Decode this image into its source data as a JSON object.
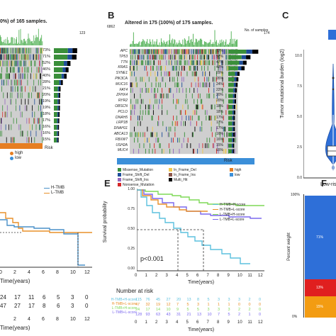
{
  "panelA": {
    "title": "0%) of 165 samples.",
    "side_count": "123",
    "percents": [
      "73%",
      "71%",
      "52%",
      "46%",
      "40%",
      "28%",
      "21%",
      "20%",
      "19%",
      "19%",
      "18%",
      "17%",
      "16%",
      "16%",
      "15%"
    ],
    "risk_label": "Risk",
    "legend": [
      "high",
      "low"
    ]
  },
  "panelB": {
    "label": "B",
    "title": "Altered in 175 (100%) of 175 samples.",
    "top_count": "6862",
    "side_count": "174",
    "side_title": "No. of samples",
    "genes": [
      "APC",
      "TP53",
      "TTN",
      "KRAS",
      "SYNE1",
      "PIK3CA",
      "MUC16",
      "FAT4",
      "ZFHX4",
      "RYR2",
      "OBSCN",
      "PCLO",
      "DNAH5",
      "LRP1B",
      "DNAH11",
      "ABCA13",
      "FBXW7",
      "USH2A",
      "MUC4"
    ],
    "percents": [
      "77%",
      "57%",
      "47%",
      "42%",
      "29%",
      "26%",
      "24%",
      "22%",
      "20%",
      "20%",
      "18%",
      "18%",
      "17%",
      "17%",
      "17%",
      "16%",
      "16%",
      "15%",
      "15%"
    ],
    "risk_label": "Risk",
    "mut_legend": [
      "Missense_Mutation",
      "Frame_Shift_Del",
      "Frame_Shift_Ins",
      "Nonsense_Mutation",
      "In_Frame_Del",
      "In_Frame_Ins",
      "Multi_Hit"
    ],
    "risk_legend": [
      "high",
      "low"
    ]
  },
  "panelC": {
    "label": "C",
    "ylabel": "Tumor mutational burden (log2)",
    "yticks": [
      "10.0",
      "7.5",
      "5.0",
      "2.5",
      "0.0"
    ],
    "xtick": "Low-ris"
  },
  "panelD": {
    "legend": [
      "H-TMB",
      "L-TMB"
    ],
    "xticks": [
      "0",
      "2",
      "4",
      "6",
      "8",
      "10",
      "12"
    ],
    "xlabel": "Time(years)",
    "risk_rows": [
      [
        "24",
        "17",
        "11",
        "6",
        "5",
        "3",
        "0"
      ],
      [
        "47",
        "27",
        "17",
        "8",
        "6",
        "3",
        "0"
      ]
    ],
    "xticks2": [
      "2",
      "4",
      "6",
      "8",
      "10",
      "12"
    ],
    "xlabel2": "Time(years)"
  },
  "panelE": {
    "label": "E",
    "ylabel": "Survival probability",
    "yticks": [
      "1.00",
      "0.75",
      "0.50",
      "0.25",
      "0.00"
    ],
    "xticks": [
      "0",
      "1",
      "2",
      "3",
      "4",
      "5",
      "6",
      "7",
      "8",
      "9",
      "10",
      "11",
      "12"
    ],
    "xlabel": "Time(years)",
    "pvalue": "p<0.001",
    "legend": [
      "H-TMB+H-score",
      "H-TMB+L-score",
      "L-TMB+H-score",
      "L-TMB+L-score"
    ],
    "risk_title": "Number at risk",
    "risk_rows": [
      [
        "115",
        "76",
        "45",
        "27",
        "20",
        "13",
        "8",
        "5",
        "3",
        "3",
        "3",
        "2",
        "0"
      ],
      [
        "47",
        "32",
        "19",
        "12",
        "7",
        "5",
        "3",
        "1",
        "1",
        "1",
        "0",
        "0",
        "0"
      ],
      [
        "24",
        "17",
        "14",
        "10",
        "9",
        "5",
        "5",
        "3",
        "3",
        "3",
        "2",
        "2",
        "0"
      ],
      [
        "128",
        "93",
        "63",
        "43",
        "31",
        "21",
        "13",
        "10",
        "7",
        "5",
        "2",
        "1",
        "0"
      ]
    ],
    "risk_xticks": [
      "0",
      "1",
      "2",
      "3",
      "4",
      "5",
      "6",
      "7",
      "8",
      "9",
      "10",
      "11",
      "12"
    ],
    "risk_xlabel": "Time(years)"
  },
  "panelF": {
    "label": "F",
    "ylabel": "Percent weight",
    "ytick_top": "100%",
    "ytick_mid": "0%",
    "segments": [
      "71%",
      "13%",
      "15%"
    ]
  },
  "colors": {
    "green": "#4caf50",
    "gray": "#bdbdbd",
    "missense": "#3a8f3a",
    "fs_del": "#1f4e99",
    "fs_ins": "#9467bd",
    "nonsense": "#d62728",
    "if_del": "#f2c94c",
    "if_ins": "#8c564b",
    "multi": "#000000",
    "high": "#e67e22",
    "low": "#3b8fd9",
    "blue_box": "#2e6fd8",
    "km_red": "#d9534f",
    "km_blue": "#4a90c8",
    "km_orange": "#e8902a",
    "km_green": "#7ed957",
    "km_purple": "#7b68ee",
    "km_teal": "#5bc0de"
  }
}
